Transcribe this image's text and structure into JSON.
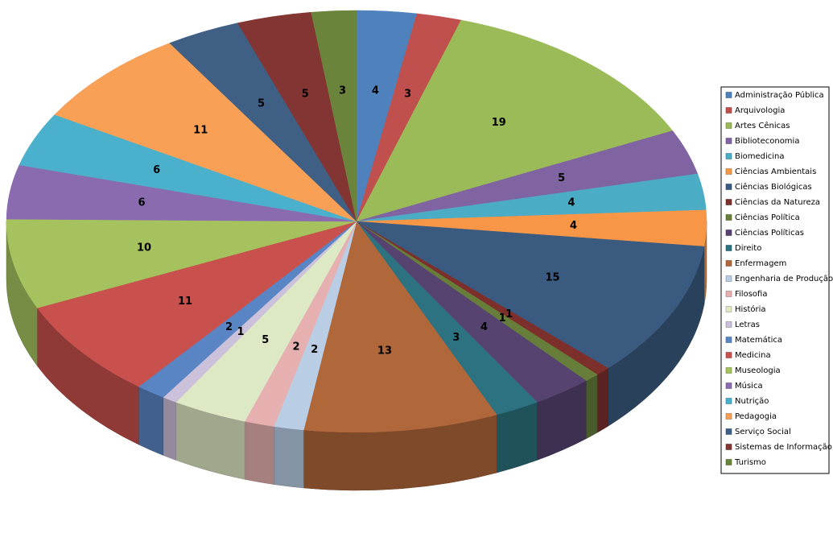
{
  "chart_data": {
    "type": "pie3d",
    "categories": [
      "Administração Pública",
      "Arquivologia",
      "Artes Cênicas",
      "Biblioteconomia",
      "Biomedicina",
      "Ciências Ambientais",
      "Ciências Biológicas",
      "Ciências da Natureza",
      "Ciências Política",
      "Ciências Políticas",
      "Direito",
      "Enfermagem",
      "Engenharia de Produção",
      "Filosofia",
      "História",
      "Letras",
      "Matemática",
      "Medicina",
      "Museologia",
      "Música",
      "Nutrição",
      "Pedagogia",
      "Serviço Social",
      "Sistemas de Informação",
      "Turismo"
    ],
    "values": [
      4,
      3,
      19,
      5,
      4,
      4,
      15,
      1,
      1,
      4,
      3,
      13,
      2,
      2,
      5,
      1,
      2,
      11,
      10,
      6,
      6,
      11,
      5,
      5,
      3
    ],
    "colors": [
      "#4F81BD",
      "#C0504D",
      "#9BBB59",
      "#8064A2",
      "#4BACC6",
      "#F79646",
      "#3A5A80",
      "#7D2F2C",
      "#667E3A",
      "#564370",
      "#2C7280",
      "#B0673A",
      "#B9CDE5",
      "#E6B0B0",
      "#DDE8C4",
      "#CCC1DA",
      "#5A85C4",
      "#C8504D",
      "#A5C25E",
      "#8A6BB0",
      "#4BB0CC",
      "#F8A055",
      "#3F5F85",
      "#833533",
      "#6B843B"
    ],
    "legend": "right"
  }
}
